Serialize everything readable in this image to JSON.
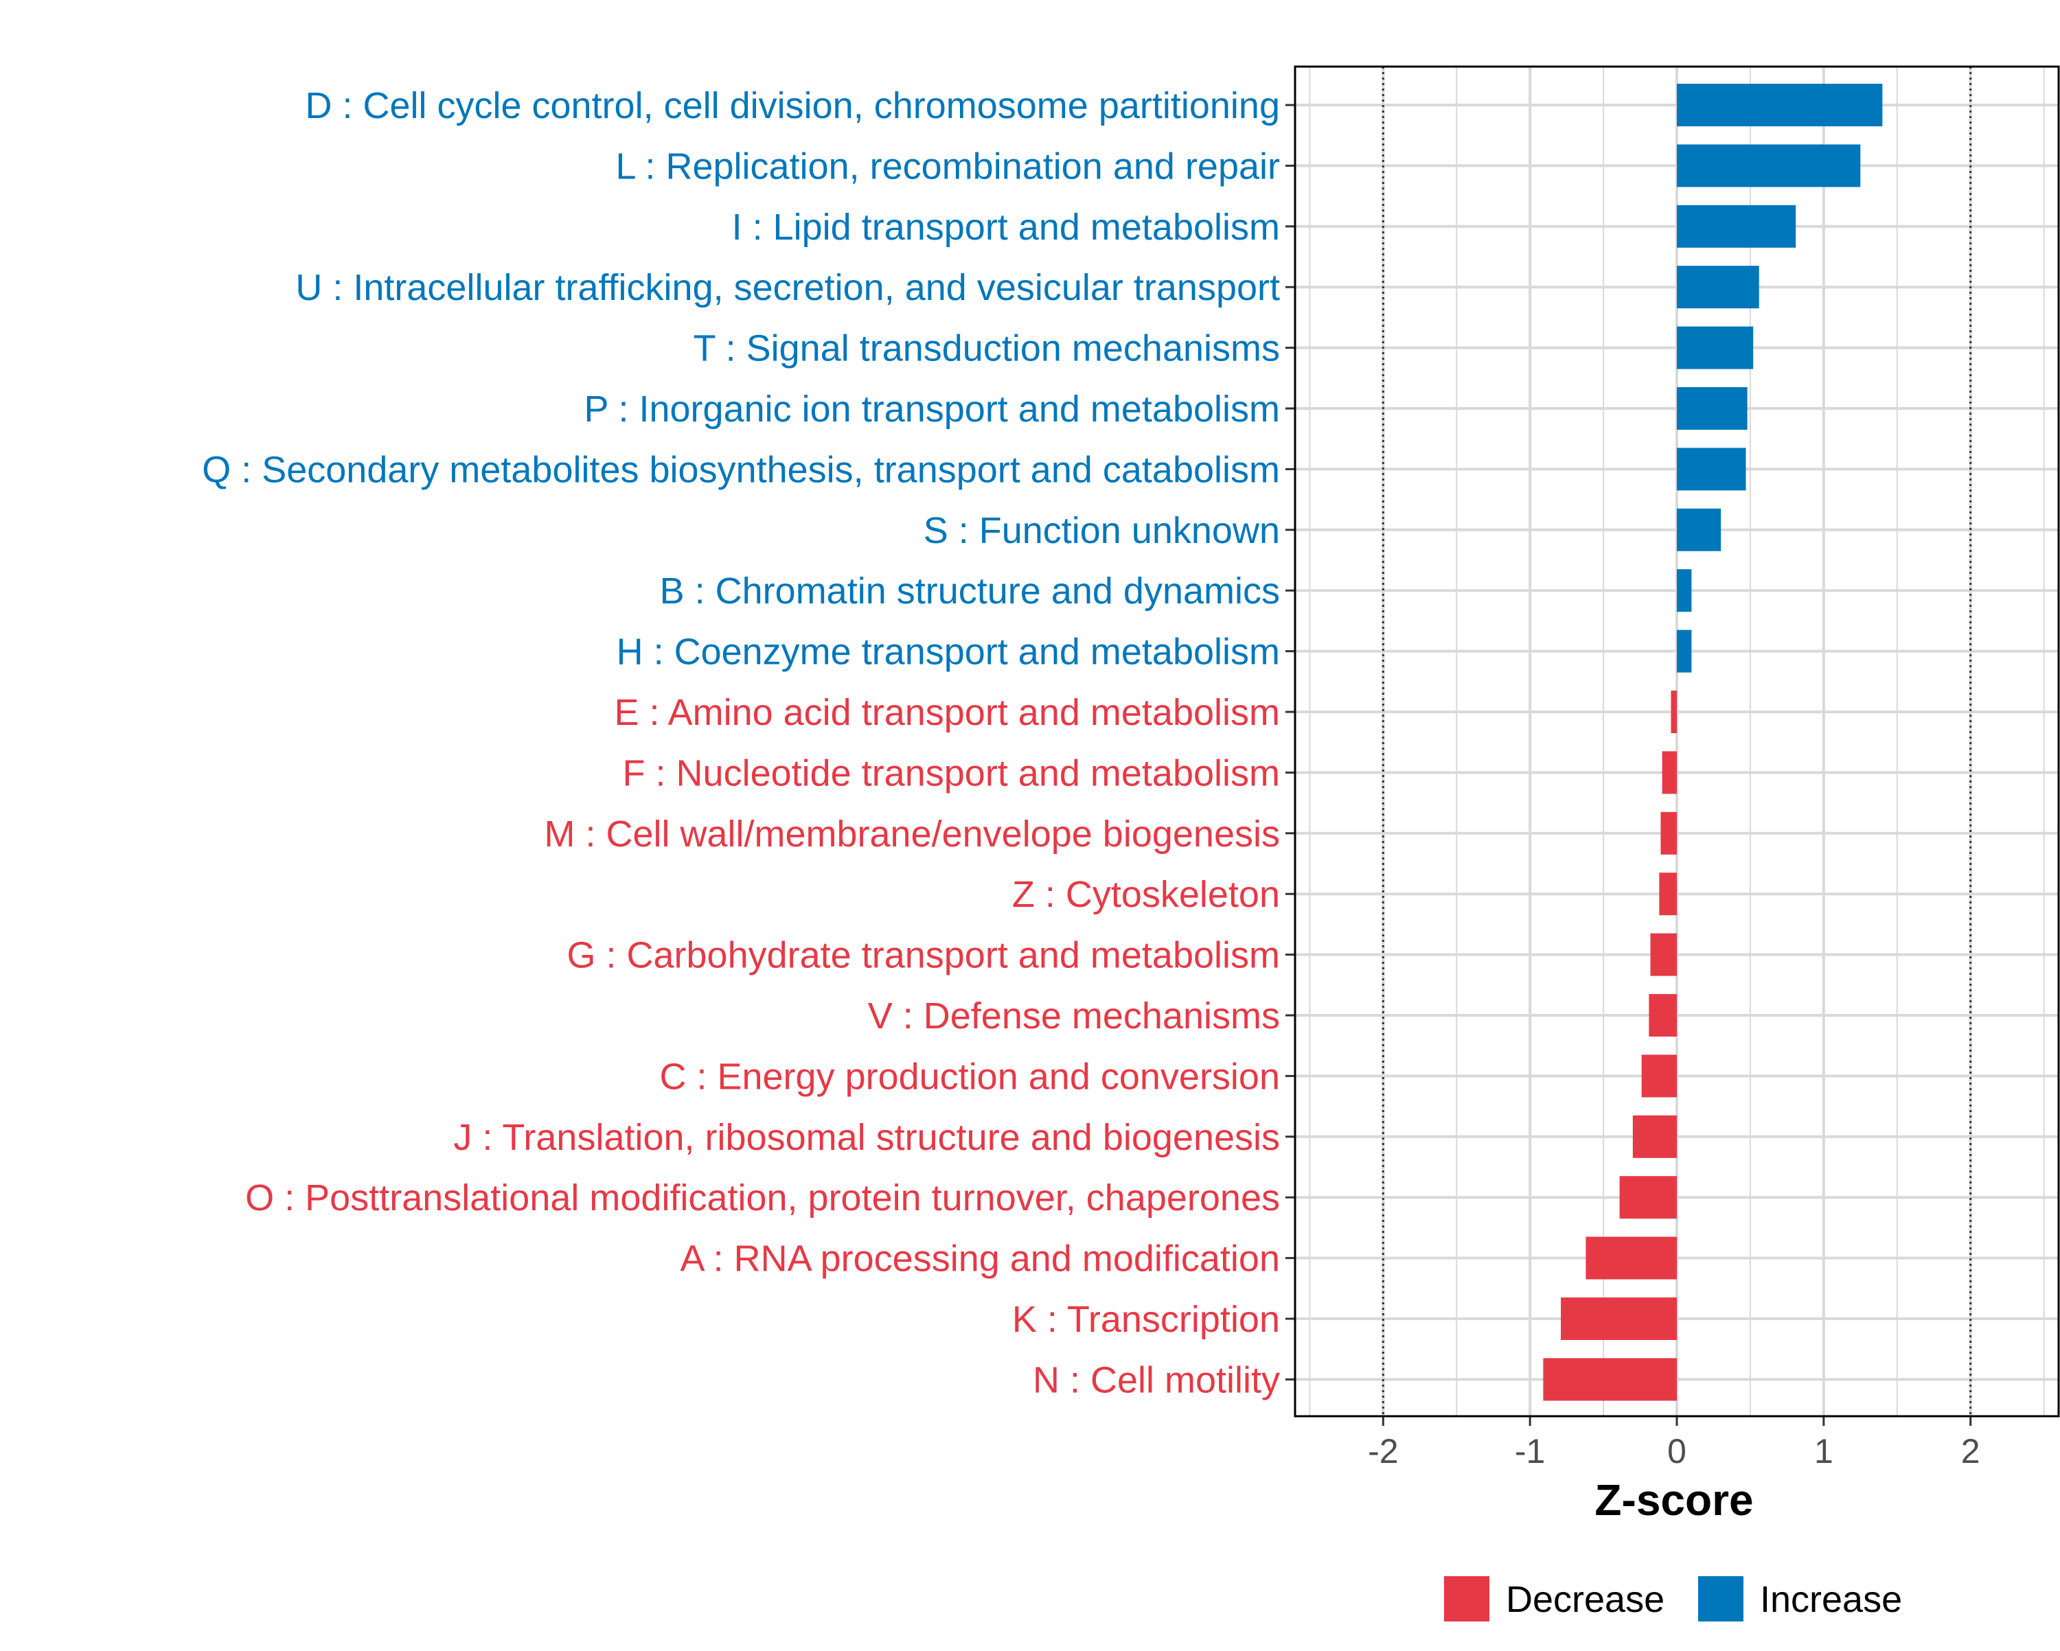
{
  "chart_data": {
    "type": "bar",
    "orientation": "horizontal",
    "title": "",
    "xlabel": "Z-score",
    "ylabel": "",
    "xlim": [
      -2.6,
      2.6
    ],
    "xticks": [
      -2,
      -1,
      0,
      1,
      2
    ],
    "xtick_labels": [
      "-2",
      "-1",
      "0",
      "1",
      "2"
    ],
    "reference_lines": [
      -2,
      2
    ],
    "grid": true,
    "legend_position": "bottom",
    "colors": {
      "Increase": "#0077BB",
      "Decrease": "#E63946",
      "grid": "#d9d9d9",
      "frame": "#000000"
    },
    "legend": [
      "Decrease",
      "Increase"
    ],
    "categories": [
      "D : Cell cycle control, cell division, chromosome partitioning",
      "L : Replication, recombination and repair",
      "I : Lipid transport and metabolism",
      "U : Intracellular trafficking, secretion, and vesicular transport",
      "T : Signal transduction mechanisms",
      "P : Inorganic ion transport and metabolism",
      "Q : Secondary metabolites biosynthesis, transport and catabolism",
      "S : Function unknown",
      "B : Chromatin structure and dynamics",
      "H : Coenzyme transport and metabolism",
      "E : Amino acid transport and metabolism",
      "F : Nucleotide transport and metabolism",
      "M : Cell wall/membrane/envelope biogenesis",
      "Z : Cytoskeleton",
      "G : Carbohydrate transport and metabolism",
      "V : Defense mechanisms",
      "C : Energy production and conversion",
      "J : Translation, ribosomal structure and biogenesis",
      "O : Posttranslational modification, protein turnover, chaperones",
      "A : RNA processing and modification",
      "K : Transcription",
      "N : Cell motility"
    ],
    "values": [
      1.4,
      1.25,
      0.81,
      0.56,
      0.52,
      0.48,
      0.47,
      0.3,
      0.1,
      0.1,
      -0.04,
      -0.1,
      -0.11,
      -0.12,
      -0.18,
      -0.19,
      -0.24,
      -0.3,
      -0.39,
      -0.62,
      -0.79,
      -0.91
    ],
    "groups": [
      "Increase",
      "Increase",
      "Increase",
      "Increase",
      "Increase",
      "Increase",
      "Increase",
      "Increase",
      "Increase",
      "Increase",
      "Decrease",
      "Decrease",
      "Decrease",
      "Decrease",
      "Decrease",
      "Decrease",
      "Decrease",
      "Decrease",
      "Decrease",
      "Decrease",
      "Decrease",
      "Decrease"
    ]
  }
}
